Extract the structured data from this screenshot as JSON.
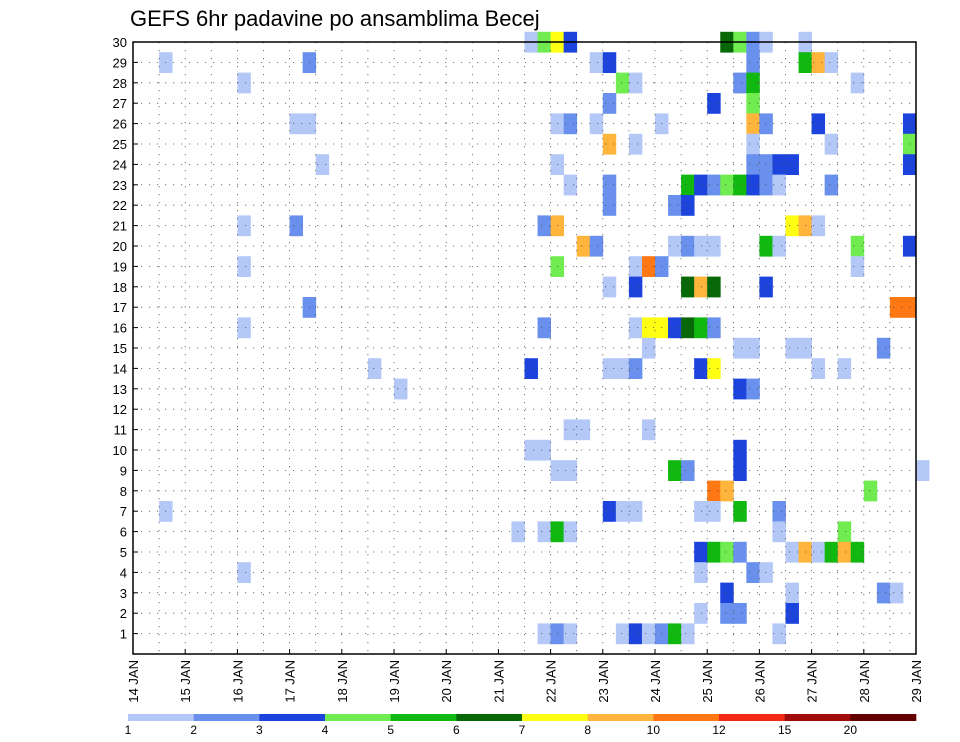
{
  "chart_data": {
    "type": "heatmap",
    "title": "GEFS 6hr padavine po ansamblima Becej",
    "x_tick_labels": [
      "14 JAN",
      "15 JAN",
      "16 JAN",
      "17 JAN",
      "18 JAN",
      "19 JAN",
      "20 JAN",
      "21 JAN",
      "22 JAN",
      "23 JAN",
      "24 JAN",
      "25 JAN",
      "26 JAN",
      "27 JAN",
      "28 JAN",
      "29 JAN"
    ],
    "xlim": [
      "14 JAN 00Z",
      "29 JAN 00Z"
    ],
    "time_step_hours": 6,
    "y_tick_labels": [
      "1",
      "2",
      "3",
      "4",
      "5",
      "6",
      "7",
      "8",
      "9",
      "10",
      "11",
      "12",
      "13",
      "14",
      "15",
      "16",
      "17",
      "18",
      "19",
      "20",
      "21",
      "22",
      "23",
      "24",
      "25",
      "26",
      "27",
      "28",
      "29",
      "30"
    ],
    "ylim": [
      0,
      30
    ],
    "grid": true,
    "colorbar": {
      "placement": "bottom",
      "labels": [
        "1",
        "2",
        "3",
        "4",
        "5",
        "6",
        "7",
        "8",
        "10",
        "12",
        "15",
        "20"
      ],
      "colors": [
        "#b4c8f8",
        "#6890ec",
        "#1c44dc",
        "#70ec50",
        "#10b810",
        "#086808",
        "#ffff14",
        "#ffb43c",
        "#ff7814",
        "#f02814",
        "#a00c0c",
        "#640000"
      ]
    },
    "cells": [
      [
        30,
        "21 JAN 12Z",
        0
      ],
      [
        30,
        "21 JAN 18Z",
        3
      ],
      [
        30,
        "22 JAN 00Z",
        6
      ],
      [
        30,
        "22 JAN 06Z",
        2
      ],
      [
        30,
        "25 JAN 06Z",
        5
      ],
      [
        30,
        "25 JAN 12Z",
        3
      ],
      [
        30,
        "25 JAN 18Z",
        1
      ],
      [
        30,
        "26 JAN 00Z",
        0
      ],
      [
        30,
        "26 JAN 18Z",
        0
      ],
      [
        29,
        "14 JAN 12Z",
        0
      ],
      [
        29,
        "17 JAN 06Z",
        1
      ],
      [
        29,
        "22 JAN 18Z",
        0
      ],
      [
        29,
        "23 JAN 00Z",
        2
      ],
      [
        29,
        "25 JAN 18Z",
        1
      ],
      [
        29,
        "26 JAN 18Z",
        4
      ],
      [
        29,
        "27 JAN 00Z",
        7
      ],
      [
        29,
        "27 JAN 06Z",
        0
      ],
      [
        28,
        "16 JAN 00Z",
        0
      ],
      [
        28,
        "23 JAN 06Z",
        3
      ],
      [
        28,
        "23 JAN 12Z",
        0
      ],
      [
        28,
        "25 JAN 12Z",
        1
      ],
      [
        28,
        "25 JAN 18Z",
        4
      ],
      [
        28,
        "27 JAN 18Z",
        0
      ],
      [
        27,
        "23 JAN 00Z",
        1
      ],
      [
        27,
        "25 JAN 00Z",
        2
      ],
      [
        27,
        "25 JAN 18Z",
        3
      ],
      [
        26,
        "17 JAN 00Z",
        0
      ],
      [
        26,
        "17 JAN 06Z",
        0
      ],
      [
        26,
        "22 JAN 00Z",
        0
      ],
      [
        26,
        "22 JAN 06Z",
        1
      ],
      [
        26,
        "22 JAN 18Z",
        0
      ],
      [
        26,
        "24 JAN 00Z",
        0
      ],
      [
        26,
        "25 JAN 18Z",
        7
      ],
      [
        26,
        "26 JAN 00Z",
        1
      ],
      [
        26,
        "27 JAN 00Z",
        2
      ],
      [
        26,
        "28 JAN 18Z",
        2
      ],
      [
        25,
        "23 JAN 00Z",
        7
      ],
      [
        25,
        "23 JAN 12Z",
        0
      ],
      [
        25,
        "25 JAN 18Z",
        0
      ],
      [
        25,
        "27 JAN 06Z",
        0
      ],
      [
        25,
        "28 JAN 18Z",
        3
      ],
      [
        24,
        "17 JAN 12Z",
        0
      ],
      [
        24,
        "22 JAN 00Z",
        0
      ],
      [
        24,
        "25 JAN 18Z",
        1
      ],
      [
        24,
        "26 JAN 00Z",
        1
      ],
      [
        24,
        "26 JAN 06Z",
        2
      ],
      [
        24,
        "26 JAN 12Z",
        2
      ],
      [
        24,
        "28 JAN 18Z",
        2
      ],
      [
        23,
        "22 JAN 06Z",
        0
      ],
      [
        23,
        "23 JAN 00Z",
        1
      ],
      [
        23,
        "24 JAN 12Z",
        4
      ],
      [
        23,
        "24 JAN 18Z",
        2
      ],
      [
        23,
        "25 JAN 00Z",
        1
      ],
      [
        23,
        "25 JAN 06Z",
        3
      ],
      [
        23,
        "25 JAN 12Z",
        4
      ],
      [
        23,
        "25 JAN 18Z",
        2
      ],
      [
        23,
        "26 JAN 00Z",
        1
      ],
      [
        23,
        "26 JAN 06Z",
        0
      ],
      [
        23,
        "27 JAN 06Z",
        1
      ],
      [
        22,
        "23 JAN 00Z",
        1
      ],
      [
        22,
        "24 JAN 06Z",
        1
      ],
      [
        22,
        "24 JAN 12Z",
        2
      ],
      [
        21,
        "16 JAN 00Z",
        0
      ],
      [
        21,
        "17 JAN 00Z",
        1
      ],
      [
        21,
        "21 JAN 18Z",
        1
      ],
      [
        21,
        "22 JAN 00Z",
        7
      ],
      [
        21,
        "26 JAN 12Z",
        6
      ],
      [
        21,
        "26 JAN 18Z",
        7
      ],
      [
        21,
        "27 JAN 00Z",
        0
      ],
      [
        20,
        "22 JAN 12Z",
        7
      ],
      [
        20,
        "22 JAN 18Z",
        1
      ],
      [
        20,
        "24 JAN 06Z",
        0
      ],
      [
        20,
        "24 JAN 12Z",
        1
      ],
      [
        20,
        "24 JAN 18Z",
        0
      ],
      [
        20,
        "25 JAN 00Z",
        0
      ],
      [
        20,
        "26 JAN 00Z",
        4
      ],
      [
        20,
        "26 JAN 06Z",
        0
      ],
      [
        20,
        "27 JAN 18Z",
        3
      ],
      [
        20,
        "28 JAN 18Z",
        2
      ],
      [
        19,
        "16 JAN 00Z",
        0
      ],
      [
        19,
        "22 JAN 00Z",
        3
      ],
      [
        19,
        "23 JAN 12Z",
        0
      ],
      [
        19,
        "23 JAN 18Z",
        8
      ],
      [
        19,
        "24 JAN 00Z",
        1
      ],
      [
        19,
        "27 JAN 18Z",
        0
      ],
      [
        18,
        "23 JAN 00Z",
        0
      ],
      [
        18,
        "23 JAN 12Z",
        2
      ],
      [
        18,
        "24 JAN 12Z",
        5
      ],
      [
        18,
        "24 JAN 18Z",
        7
      ],
      [
        18,
        "25 JAN 00Z",
        5
      ],
      [
        18,
        "26 JAN 00Z",
        2
      ],
      [
        17,
        "17 JAN 06Z",
        1
      ],
      [
        17,
        "28 JAN 12Z",
        8
      ],
      [
        17,
        "28 JAN 18Z",
        8
      ],
      [
        16,
        "16 JAN 00Z",
        0
      ],
      [
        16,
        "21 JAN 18Z",
        1
      ],
      [
        16,
        "23 JAN 12Z",
        0
      ],
      [
        16,
        "23 JAN 18Z",
        6
      ],
      [
        16,
        "24 JAN 00Z",
        6
      ],
      [
        16,
        "24 JAN 06Z",
        2
      ],
      [
        16,
        "24 JAN 12Z",
        5
      ],
      [
        16,
        "24 JAN 18Z",
        4
      ],
      [
        16,
        "25 JAN 00Z",
        1
      ],
      [
        15,
        "23 JAN 18Z",
        0
      ],
      [
        15,
        "25 JAN 12Z",
        0
      ],
      [
        15,
        "25 JAN 18Z",
        0
      ],
      [
        15,
        "26 JAN 12Z",
        0
      ],
      [
        15,
        "26 JAN 18Z",
        0
      ],
      [
        15,
        "28 JAN 06Z",
        1
      ],
      [
        14,
        "18 JAN 12Z",
        0
      ],
      [
        14,
        "21 JAN 12Z",
        2
      ],
      [
        14,
        "23 JAN 00Z",
        0
      ],
      [
        14,
        "23 JAN 06Z",
        0
      ],
      [
        14,
        "23 JAN 12Z",
        1
      ],
      [
        14,
        "24 JAN 18Z",
        2
      ],
      [
        14,
        "25 JAN 00Z",
        6
      ],
      [
        14,
        "27 JAN 00Z",
        0
      ],
      [
        14,
        "27 JAN 12Z",
        0
      ],
      [
        13,
        "19 JAN 00Z",
        0
      ],
      [
        13,
        "25 JAN 12Z",
        2
      ],
      [
        13,
        "25 JAN 18Z",
        1
      ],
      [
        11,
        "22 JAN 06Z",
        0
      ],
      [
        11,
        "22 JAN 12Z",
        0
      ],
      [
        11,
        "23 JAN 18Z",
        0
      ],
      [
        10,
        "21 JAN 12Z",
        0
      ],
      [
        10,
        "21 JAN 18Z",
        0
      ],
      [
        10,
        "25 JAN 12Z",
        2
      ],
      [
        9,
        "22 JAN 00Z",
        0
      ],
      [
        9,
        "22 JAN 06Z",
        0
      ],
      [
        9,
        "24 JAN 06Z",
        4
      ],
      [
        9,
        "24 JAN 12Z",
        1
      ],
      [
        9,
        "25 JAN 12Z",
        2
      ],
      [
        9,
        "29 JAN 00Z",
        0
      ],
      [
        8,
        "25 JAN 00Z",
        8
      ],
      [
        8,
        "25 JAN 06Z",
        7
      ],
      [
        8,
        "28 JAN 00Z",
        3
      ],
      [
        7,
        "14 JAN 12Z",
        0
      ],
      [
        7,
        "23 JAN 00Z",
        2
      ],
      [
        7,
        "23 JAN 06Z",
        0
      ],
      [
        7,
        "23 JAN 12Z",
        0
      ],
      [
        7,
        "24 JAN 18Z",
        0
      ],
      [
        7,
        "25 JAN 00Z",
        0
      ],
      [
        7,
        "25 JAN 12Z",
        4
      ],
      [
        7,
        "26 JAN 06Z",
        1
      ],
      [
        6,
        "21 JAN 06Z",
        0
      ],
      [
        6,
        "21 JAN 18Z",
        0
      ],
      [
        6,
        "22 JAN 00Z",
        4
      ],
      [
        6,
        "22 JAN 06Z",
        0
      ],
      [
        6,
        "26 JAN 06Z",
        0
      ],
      [
        6,
        "27 JAN 12Z",
        3
      ],
      [
        5,
        "24 JAN 18Z",
        2
      ],
      [
        5,
        "25 JAN 00Z",
        4
      ],
      [
        5,
        "25 JAN 06Z",
        3
      ],
      [
        5,
        "25 JAN 12Z",
        1
      ],
      [
        5,
        "26 JAN 12Z",
        0
      ],
      [
        5,
        "26 JAN 18Z",
        7
      ],
      [
        5,
        "27 JAN 00Z",
        0
      ],
      [
        5,
        "27 JAN 06Z",
        4
      ],
      [
        5,
        "27 JAN 12Z",
        7
      ],
      [
        5,
        "27 JAN 18Z",
        4
      ],
      [
        4,
        "16 JAN 00Z",
        0
      ],
      [
        4,
        "24 JAN 18Z",
        0
      ],
      [
        4,
        "25 JAN 18Z",
        1
      ],
      [
        4,
        "26 JAN 00Z",
        0
      ],
      [
        3,
        "25 JAN 06Z",
        2
      ],
      [
        3,
        "26 JAN 12Z",
        0
      ],
      [
        3,
        "28 JAN 06Z",
        1
      ],
      [
        3,
        "28 JAN 12Z",
        0
      ],
      [
        2,
        "24 JAN 18Z",
        0
      ],
      [
        2,
        "25 JAN 06Z",
        1
      ],
      [
        2,
        "25 JAN 12Z",
        1
      ],
      [
        2,
        "26 JAN 12Z",
        2
      ],
      [
        1,
        "21 JAN 18Z",
        0
      ],
      [
        1,
        "22 JAN 00Z",
        1
      ],
      [
        1,
        "22 JAN 06Z",
        0
      ],
      [
        1,
        "23 JAN 06Z",
        0
      ],
      [
        1,
        "23 JAN 12Z",
        2
      ],
      [
        1,
        "23 JAN 18Z",
        0
      ],
      [
        1,
        "24 JAN 00Z",
        1
      ],
      [
        1,
        "24 JAN 06Z",
        4
      ],
      [
        1,
        "24 JAN 12Z",
        0
      ],
      [
        1,
        "26 JAN 06Z",
        0
      ]
    ]
  }
}
